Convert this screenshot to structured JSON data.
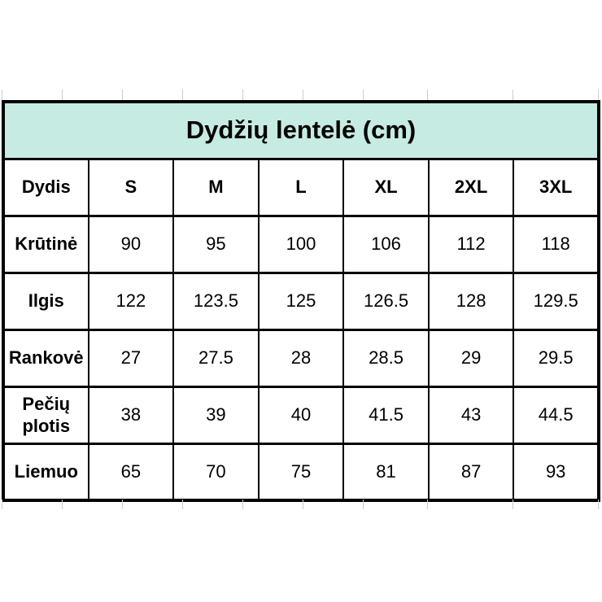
{
  "table": {
    "title": "Dydžių lentelė (cm)",
    "columns": [
      "Dydis",
      "S",
      "M",
      "L",
      "XL",
      "2XL",
      "3XL"
    ],
    "rows": [
      {
        "label": "Krūtinė",
        "values": [
          "90",
          "95",
          "100",
          "106",
          "112",
          "118"
        ]
      },
      {
        "label": "Ilgis",
        "values": [
          "122",
          "123.5",
          "125",
          "126.5",
          "128",
          "129.5"
        ]
      },
      {
        "label": "Rankovė",
        "values": [
          "27",
          "27.5",
          "28",
          "28.5",
          "29",
          "29.5"
        ]
      },
      {
        "label": "Pečių plotis",
        "values": [
          "38",
          "39",
          "40",
          "41.5",
          "43",
          "44.5"
        ]
      },
      {
        "label": "Liemuo",
        "values": [
          "65",
          "70",
          "75",
          "81",
          "87",
          "93"
        ]
      }
    ]
  },
  "chart_data": {
    "type": "table",
    "title": "Dydžių lentelė (cm)",
    "unit": "cm",
    "columns": [
      "Dydis",
      "S",
      "M",
      "L",
      "XL",
      "2XL",
      "3XL"
    ],
    "rows": [
      [
        "Krūtinė",
        90,
        95,
        100,
        106,
        112,
        118
      ],
      [
        "Ilgis",
        122,
        123.5,
        125,
        126.5,
        128,
        129.5
      ],
      [
        "Rankovė",
        27,
        27.5,
        28,
        28.5,
        29,
        29.5
      ],
      [
        "Pečių plotis",
        38,
        39,
        40,
        41.5,
        43,
        44.5
      ],
      [
        "Liemuo",
        65,
        70,
        75,
        81,
        87,
        93
      ]
    ]
  },
  "colors": {
    "title_background": "#c6ebe2",
    "border": "#000000",
    "gridline": "#cccccc",
    "page_background": "#ffffff"
  }
}
